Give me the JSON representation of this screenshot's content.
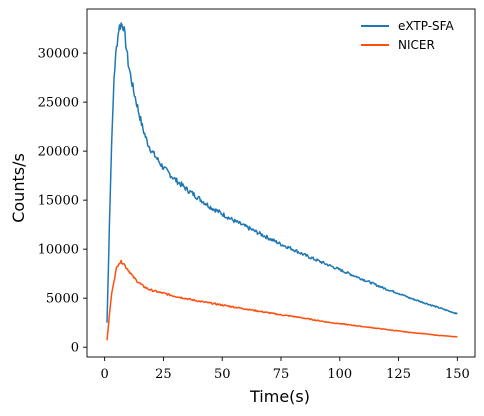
{
  "chart_data": {
    "type": "line",
    "xlabel": "Time(s)",
    "ylabel": "Counts/s",
    "xlim": [
      -7.5,
      157.5
    ],
    "ylim": [
      -1000,
      34500
    ],
    "x_ticks": [
      0,
      25,
      50,
      75,
      100,
      125,
      150
    ],
    "y_ticks": [
      0,
      5000,
      10000,
      15000,
      20000,
      25000,
      30000
    ],
    "x_tick_labels": [
      "0",
      "25",
      "50",
      "75",
      "100",
      "125",
      "150"
    ],
    "y_tick_labels": [
      "0",
      "5000",
      "10000",
      "15000",
      "20000",
      "25000",
      "30000"
    ],
    "grid": false,
    "legend_position": "top-right",
    "colors": {
      "eXTP-SFA": "#1f77b4",
      "NICER": "#ff4f0f"
    },
    "series": [
      {
        "name": "eXTP-SFA",
        "x": [
          1,
          2,
          3,
          4,
          5,
          6,
          7,
          8,
          9,
          10,
          12,
          14,
          16,
          18,
          20,
          25,
          30,
          35,
          40,
          45,
          50,
          55,
          60,
          65,
          70,
          75,
          80,
          85,
          90,
          95,
          100,
          105,
          110,
          115,
          120,
          125,
          130,
          135,
          140,
          145,
          150
        ],
        "y": [
          2500,
          12000,
          21000,
          27500,
          30500,
          32500,
          33000,
          32800,
          31000,
          29000,
          26500,
          24500,
          22500,
          21000,
          20000,
          18300,
          17100,
          16100,
          15200,
          14300,
          13600,
          12900,
          12300,
          11700,
          11100,
          10500,
          10000,
          9400,
          8900,
          8400,
          7900,
          7400,
          6900,
          6400,
          5900,
          5500,
          5000,
          4600,
          4200,
          3800,
          3400
        ]
      },
      {
        "name": "NICER",
        "x": [
          1,
          2,
          3,
          4,
          5,
          6,
          7,
          8,
          9,
          10,
          12,
          14,
          16,
          18,
          20,
          25,
          30,
          35,
          40,
          45,
          50,
          55,
          60,
          65,
          70,
          75,
          80,
          85,
          90,
          95,
          100,
          105,
          110,
          115,
          120,
          125,
          130,
          135,
          140,
          145,
          150
        ],
        "y": [
          700,
          3200,
          5500,
          6800,
          8000,
          8600,
          8700,
          8600,
          8200,
          7900,
          7200,
          6700,
          6300,
          6000,
          5800,
          5500,
          5200,
          4950,
          4700,
          4500,
          4300,
          4100,
          3900,
          3700,
          3500,
          3300,
          3150,
          2950,
          2750,
          2550,
          2400,
          2250,
          2100,
          1950,
          1800,
          1650,
          1500,
          1400,
          1250,
          1150,
          1050
        ]
      }
    ]
  }
}
